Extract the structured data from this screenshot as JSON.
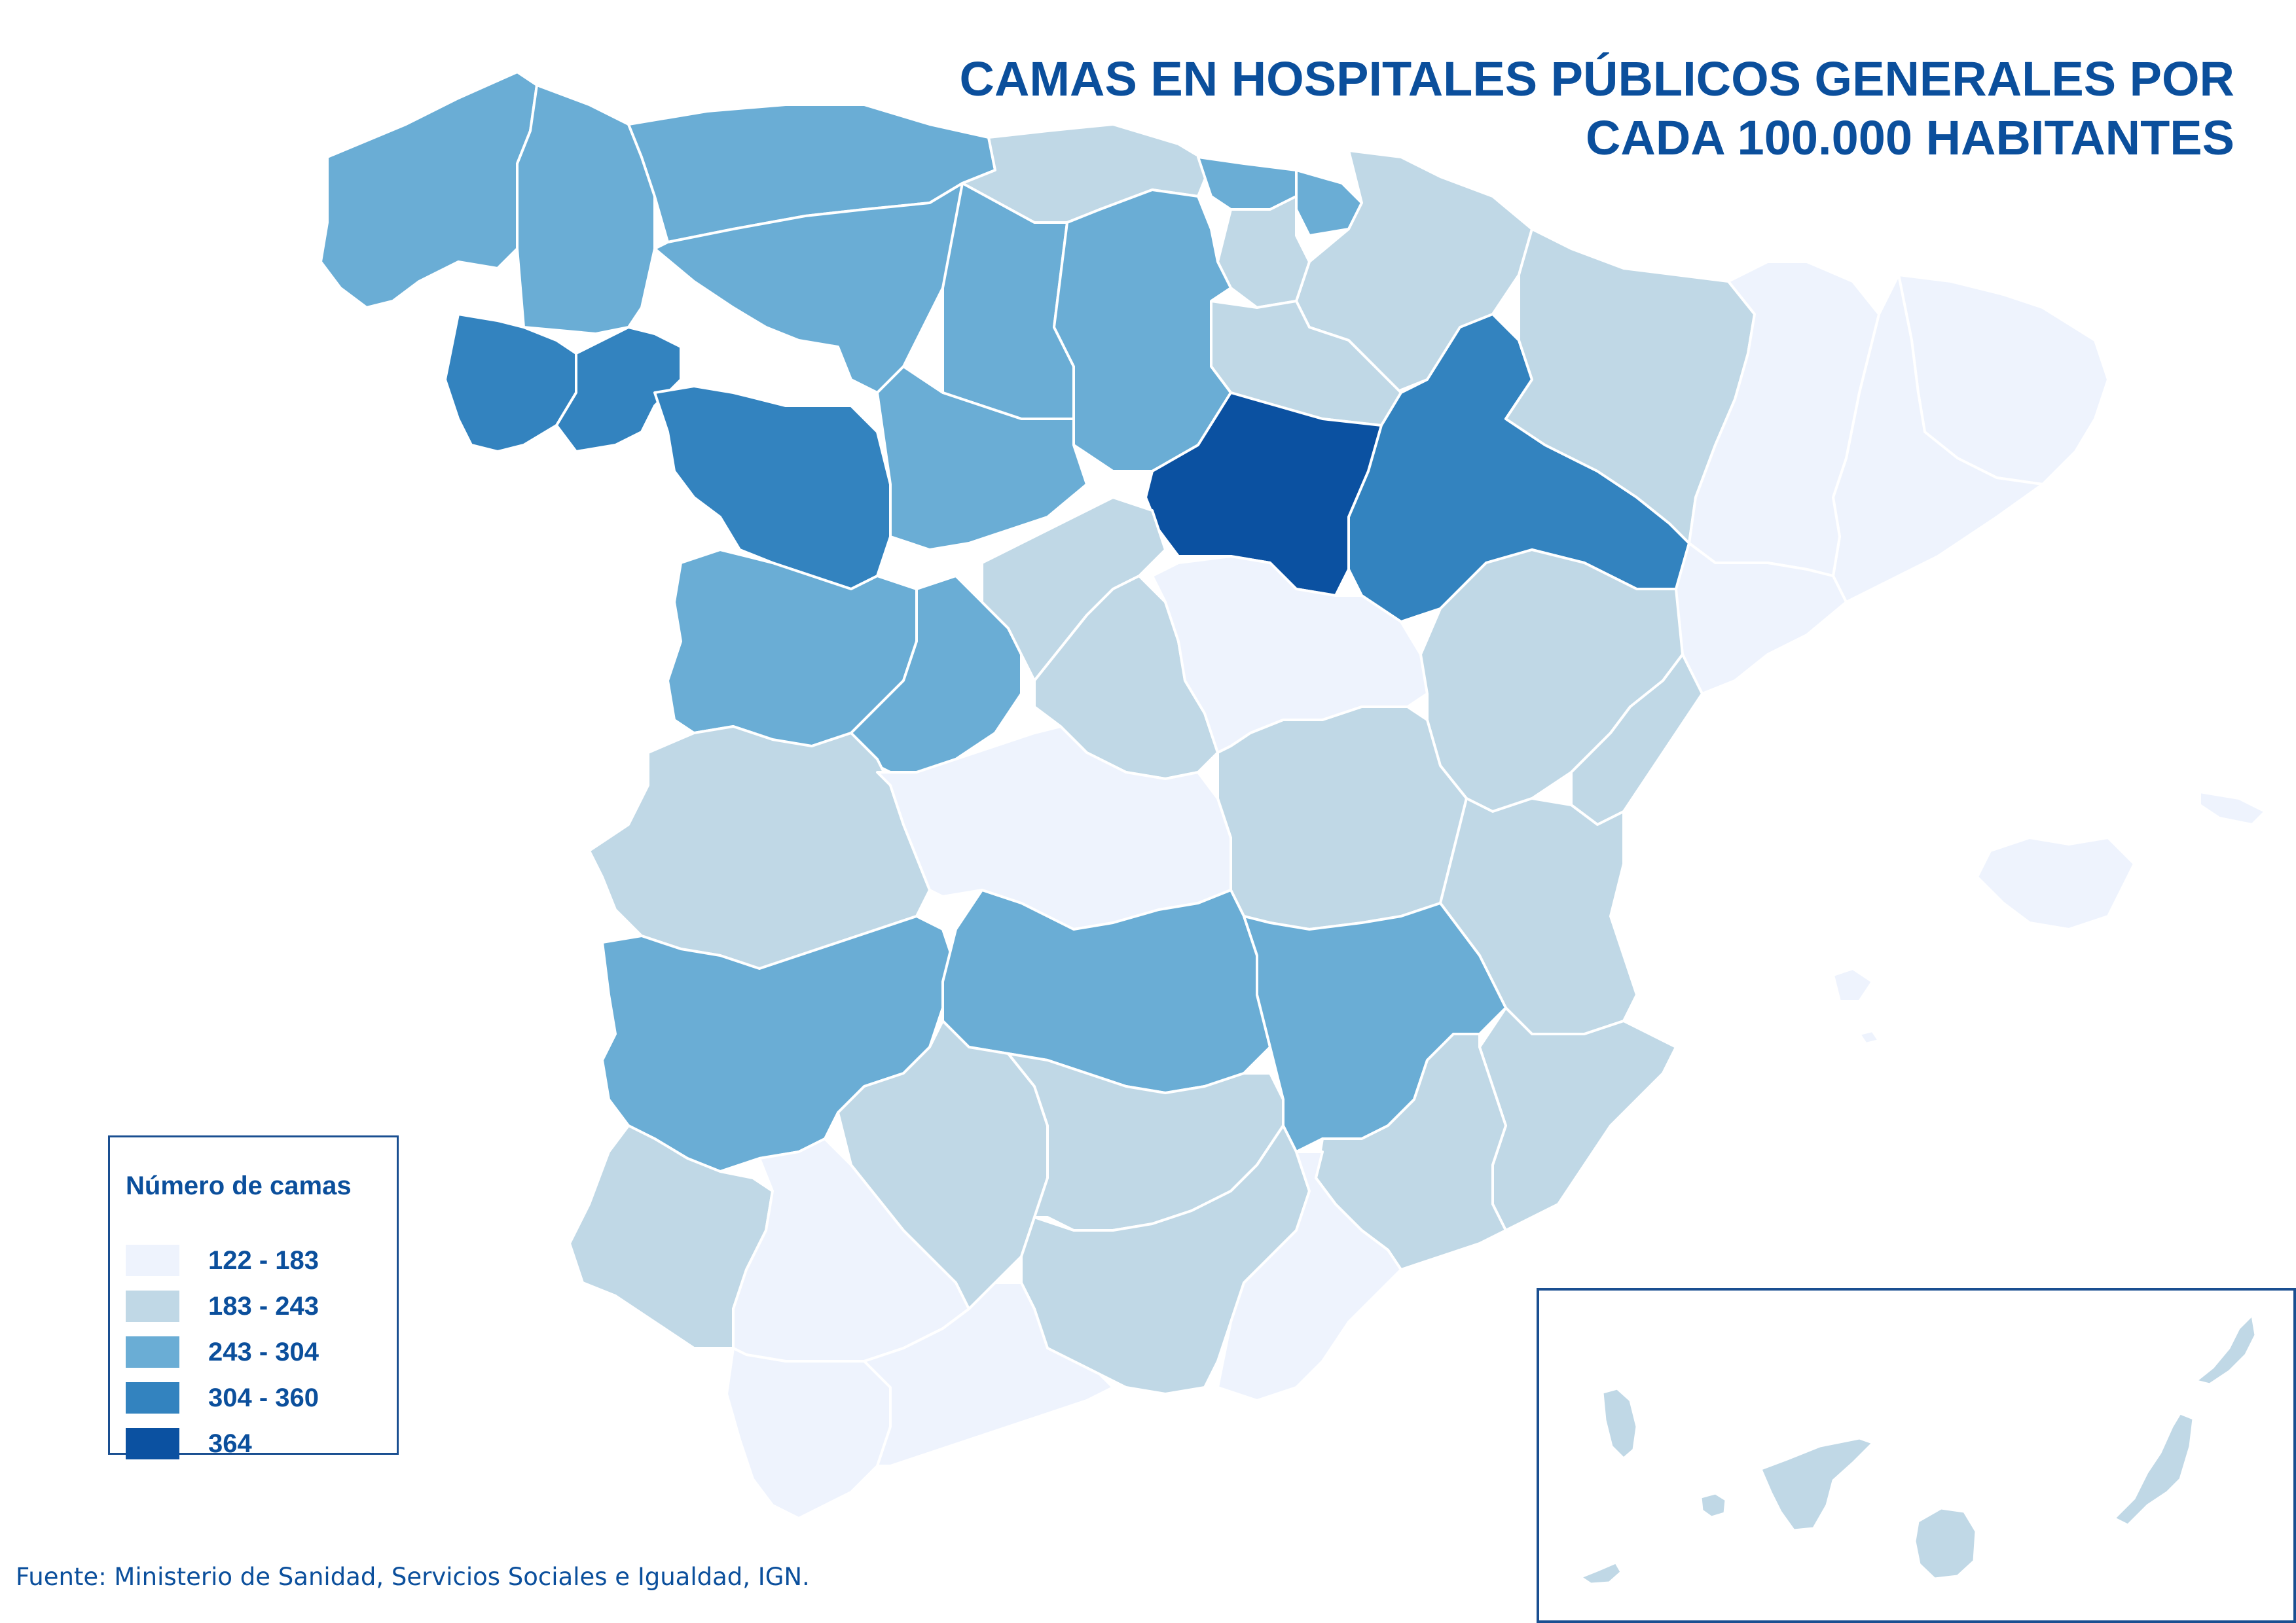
{
  "title_lines": [
    "CAMAS EN HOSPITALES PÚBLICOS GENERALES POR",
    "CADA 100.000 HABITANTES"
  ],
  "legend": {
    "title": "Número de camas",
    "classes": [
      {
        "label": "122 - 183",
        "color": "#eef3fd"
      },
      {
        "label": "183 - 243",
        "color": "#c0d8e6"
      },
      {
        "label": "243 - 304",
        "color": "#6aadd5"
      },
      {
        "label": "304 - 360",
        "color": "#3383bf"
      },
      {
        "label": "364",
        "color": "#0b51a1"
      }
    ]
  },
  "source": "Fuente: Ministerio de Sanidad, Servicios Sociales e Igualdad, IGN.",
  "colors": {
    "accent": "#0b4f9c",
    "border": "#ffffff",
    "frame": "#1a4f91"
  }
}
